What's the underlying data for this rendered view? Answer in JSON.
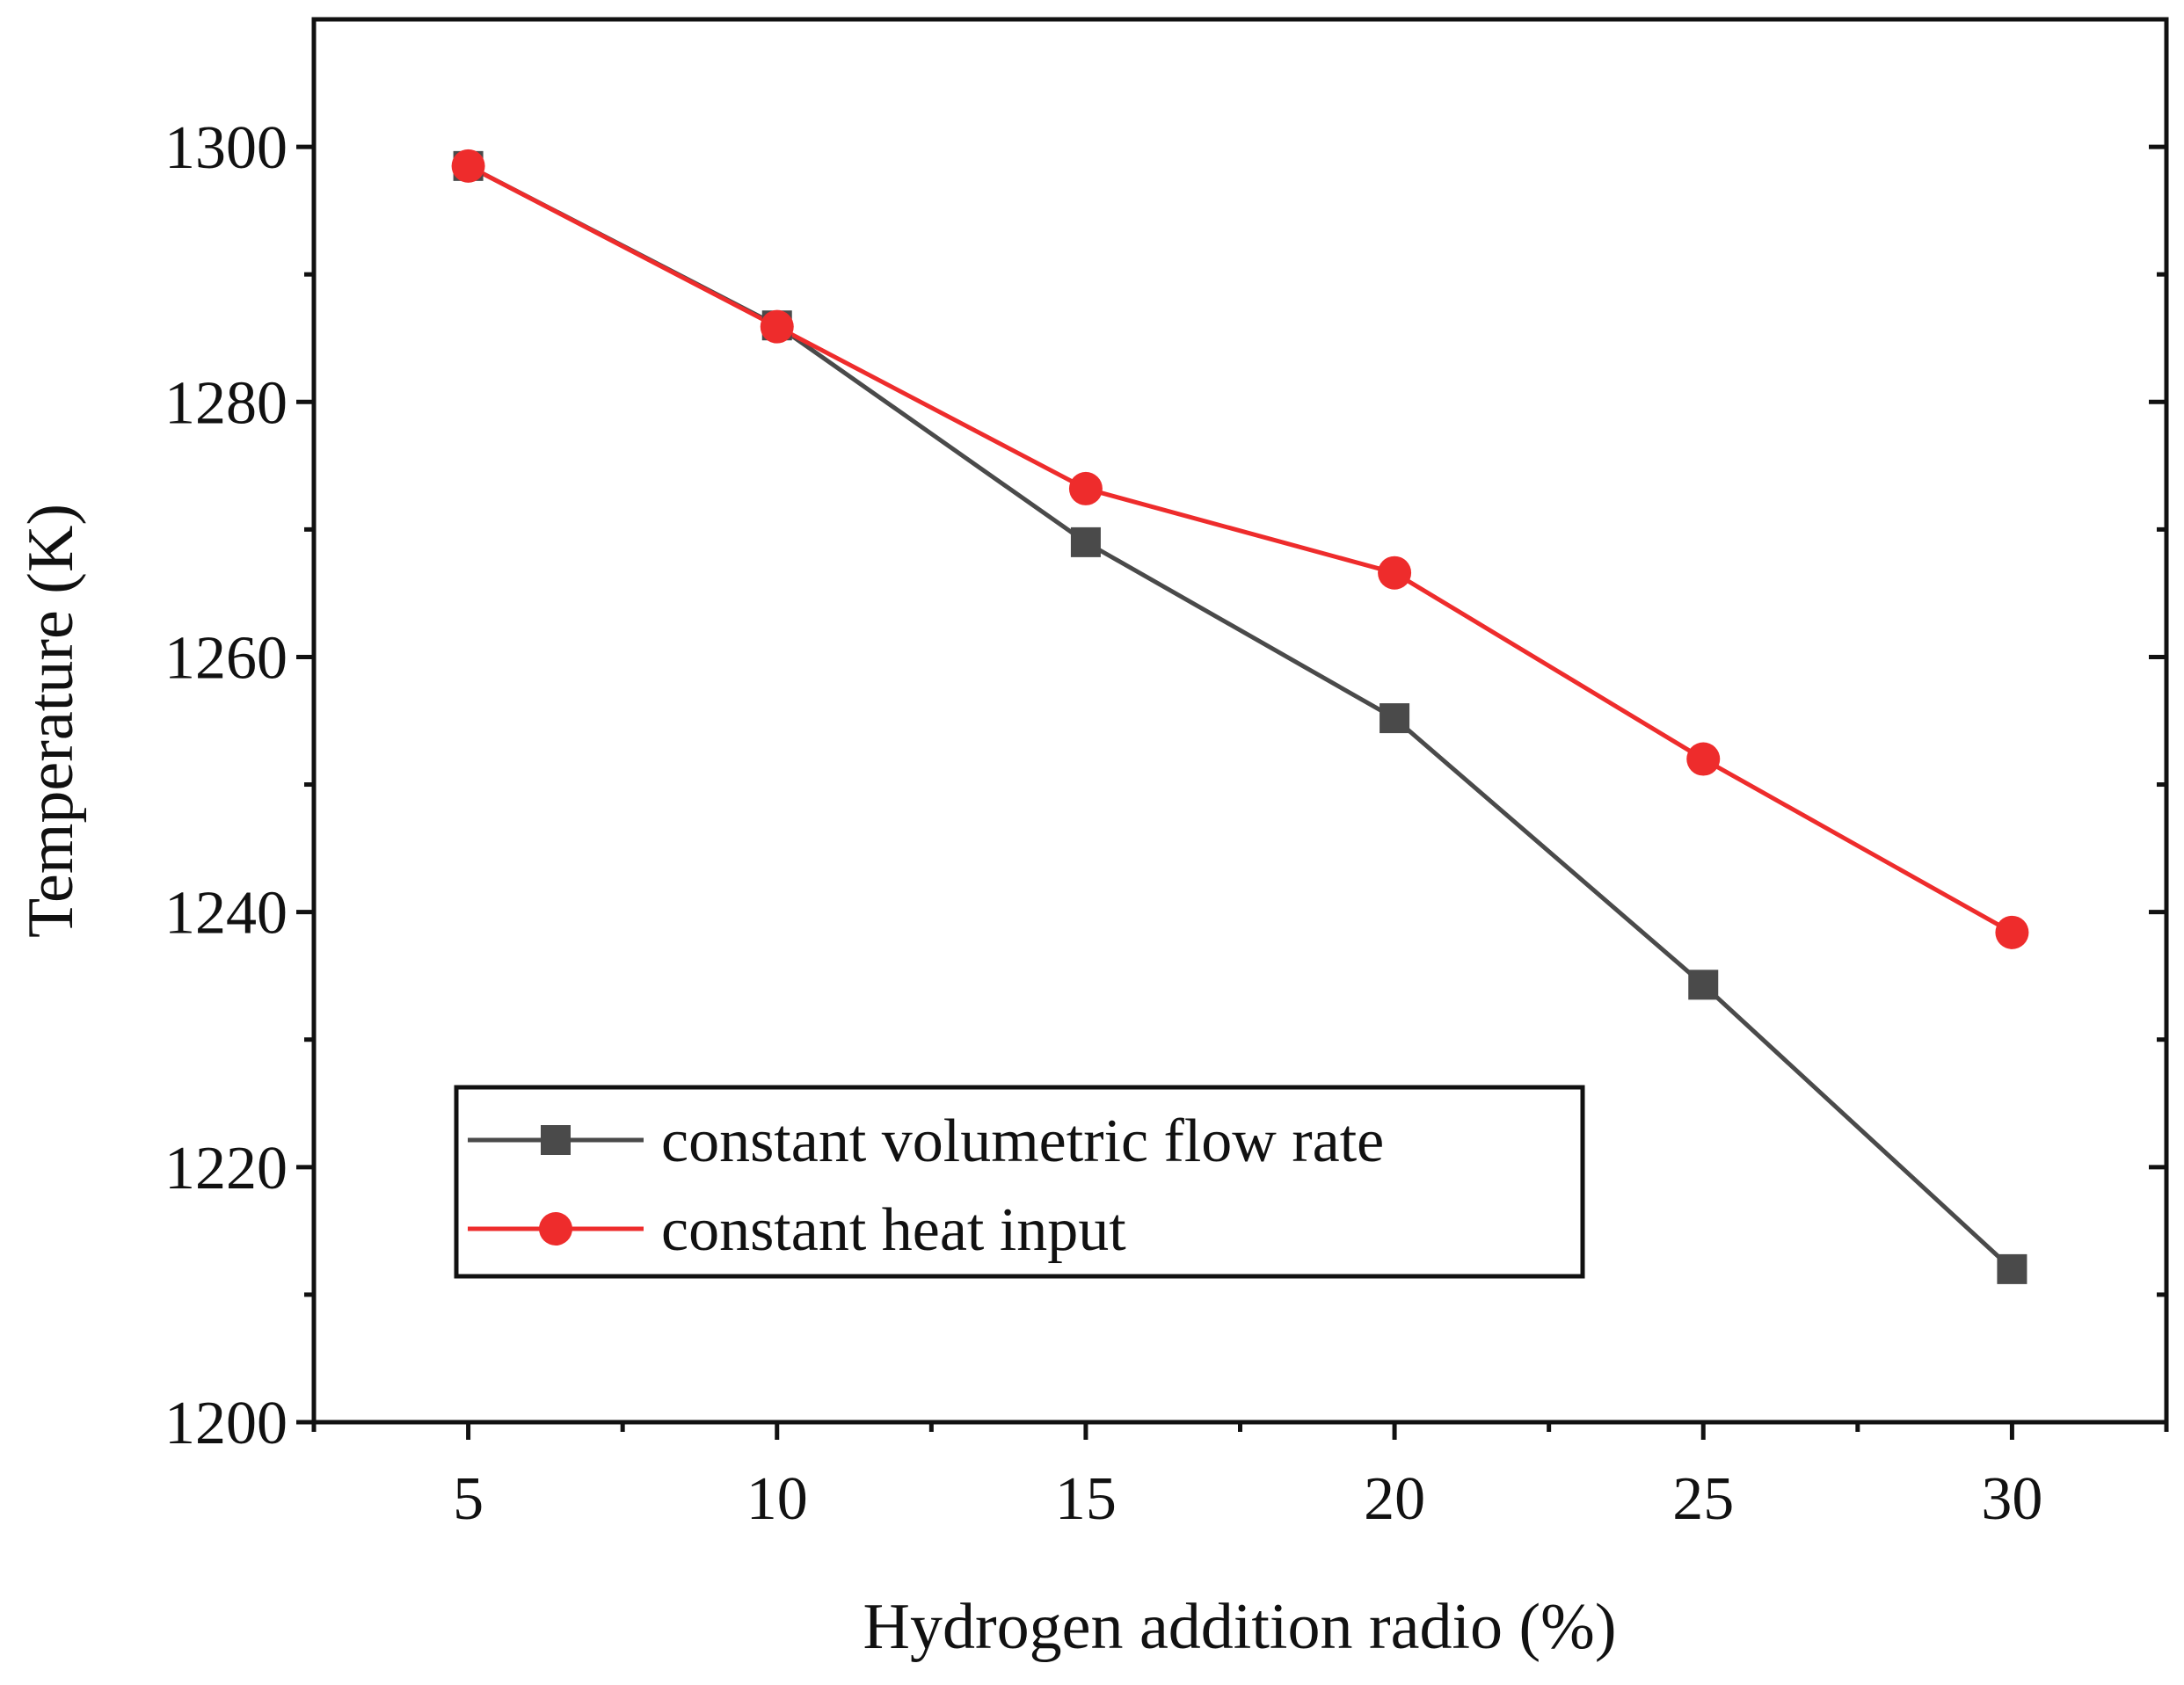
{
  "chart_data": {
    "type": "line",
    "title": "",
    "xlabel": "Hydrogen addition radio (%)",
    "ylabel": "Temperature (K)",
    "xlim": [
      2.5,
      32.5
    ],
    "ylim": [
      1200,
      1310
    ],
    "xticks": [
      5,
      10,
      15,
      20,
      25,
      30
    ],
    "yticks": [
      1200,
      1220,
      1240,
      1260,
      1280,
      1300
    ],
    "x": [
      5,
      10,
      15,
      20,
      25,
      30
    ],
    "grid": false,
    "legend_position": "lower-left",
    "series": [
      {
        "name": "constant volumetric flow rate",
        "marker": "square",
        "color": "#4a4a4a",
        "values": [
          1298.5,
          1286.0,
          1269.0,
          1255.2,
          1234.3,
          1212.0
        ]
      },
      {
        "name": "constant heat input",
        "marker": "circle",
        "color": "#ee2c2c",
        "values": [
          1298.5,
          1285.9,
          1273.2,
          1266.6,
          1252.0,
          1238.4
        ]
      }
    ]
  }
}
